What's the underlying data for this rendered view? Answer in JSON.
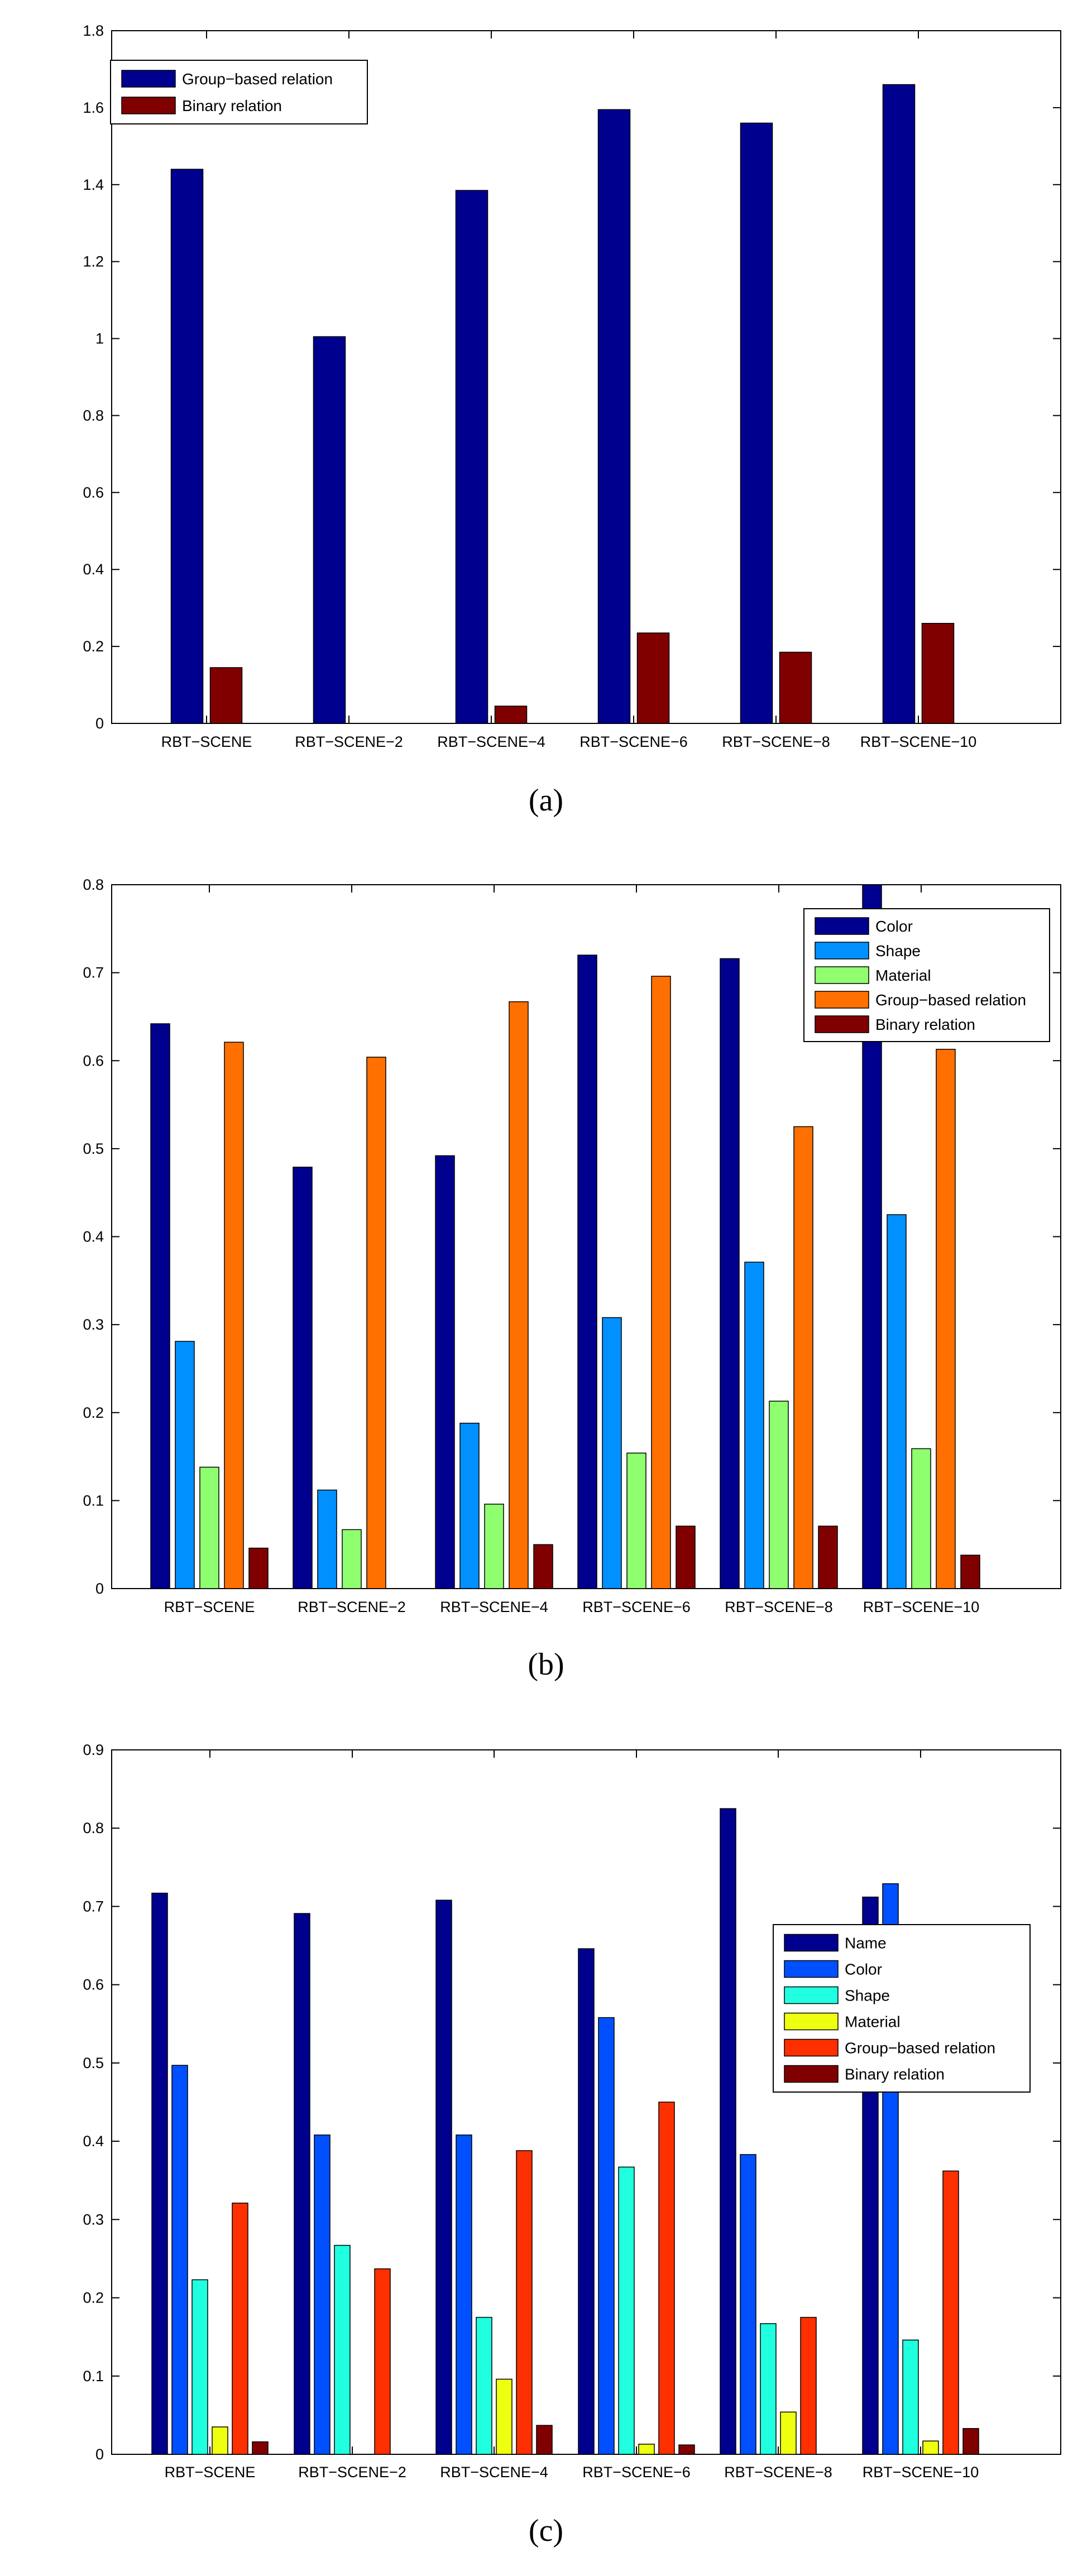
{
  "chart_data": [
    {
      "type": "bar",
      "caption": "(a)",
      "categories": [
        "RBT−SCENE",
        "RBT−SCENE−2",
        "RBT−SCENE−4",
        "RBT−SCENE−6",
        "RBT−SCENE−8",
        "RBT−SCENE−10"
      ],
      "ylim": [
        0,
        1.8
      ],
      "yticks": [
        "0",
        "0.2",
        "0.4",
        "0.6",
        "0.8",
        "1",
        "1.2",
        "1.4",
        "1.6",
        "1.8"
      ],
      "legend_position": "top-left",
      "series": [
        {
          "name": "Group−based relation",
          "color": "#00008F",
          "values": [
            1.44,
            1.005,
            1.385,
            1.595,
            1.56,
            1.66
          ]
        },
        {
          "name": "Binary relation",
          "color": "#800000",
          "values": [
            0.145,
            0,
            0.045,
            0.235,
            0.185,
            0.26
          ]
        }
      ]
    },
    {
      "type": "bar",
      "caption": "(b)",
      "categories": [
        "RBT−SCENE",
        "RBT−SCENE−2",
        "RBT−SCENE−4",
        "RBT−SCENE−6",
        "RBT−SCENE−8",
        "RBT−SCENE−10"
      ],
      "ylim": [
        0,
        0.8
      ],
      "yticks": [
        "0",
        "0.1",
        "0.2",
        "0.3",
        "0.4",
        "0.5",
        "0.6",
        "0.7",
        "0.8"
      ],
      "legend_position": "top-right",
      "series": [
        {
          "name": "Color",
          "color": "#00008F",
          "values": [
            0.642,
            0.479,
            0.492,
            0.72,
            0.716,
            0.8
          ]
        },
        {
          "name": "Shape",
          "color": "#0090FF",
          "values": [
            0.281,
            0.112,
            0.188,
            0.308,
            0.371,
            0.425
          ]
        },
        {
          "name": "Material",
          "color": "#8FFF70",
          "values": [
            0.138,
            0.067,
            0.096,
            0.154,
            0.213,
            0.159
          ]
        },
        {
          "name": "Group−based relation",
          "color": "#FF7000",
          "values": [
            0.621,
            0.604,
            0.667,
            0.696,
            0.525,
            0.613
          ]
        },
        {
          "name": "Binary relation",
          "color": "#800000",
          "values": [
            0.046,
            0,
            0.05,
            0.071,
            0.071,
            0.038
          ]
        }
      ]
    },
    {
      "type": "bar",
      "caption": "(c)",
      "categories": [
        "RBT−SCENE",
        "RBT−SCENE−2",
        "RBT−SCENE−4",
        "RBT−SCENE−6",
        "RBT−SCENE−8",
        "RBT−SCENE−10"
      ],
      "ylim": [
        0,
        0.9
      ],
      "yticks": [
        "0",
        "0.1",
        "0.2",
        "0.3",
        "0.4",
        "0.5",
        "0.6",
        "0.7",
        "0.8",
        "0.9"
      ],
      "legend_position": "right",
      "series": [
        {
          "name": "Name",
          "color": "#00008F",
          "values": [
            0.717,
            0.691,
            0.708,
            0.646,
            0.825,
            0.712
          ]
        },
        {
          "name": "Color",
          "color": "#0050FF",
          "values": [
            0.497,
            0.408,
            0.408,
            0.558,
            0.383,
            0.729
          ]
        },
        {
          "name": "Shape",
          "color": "#20FFDF",
          "values": [
            0.223,
            0.267,
            0.175,
            0.367,
            0.167,
            0.146
          ]
        },
        {
          "name": "Material",
          "color": "#EFFF10",
          "values": [
            0.035,
            0,
            0.096,
            0.013,
            0.054,
            0.017
          ]
        },
        {
          "name": "Group−based relation",
          "color": "#FF3000",
          "values": [
            0.321,
            0.237,
            0.388,
            0.45,
            0.175,
            0.362
          ]
        },
        {
          "name": "Binary relation",
          "color": "#800000",
          "values": [
            0.016,
            0,
            0.037,
            0.012,
            0,
            0.033
          ]
        }
      ]
    }
  ]
}
